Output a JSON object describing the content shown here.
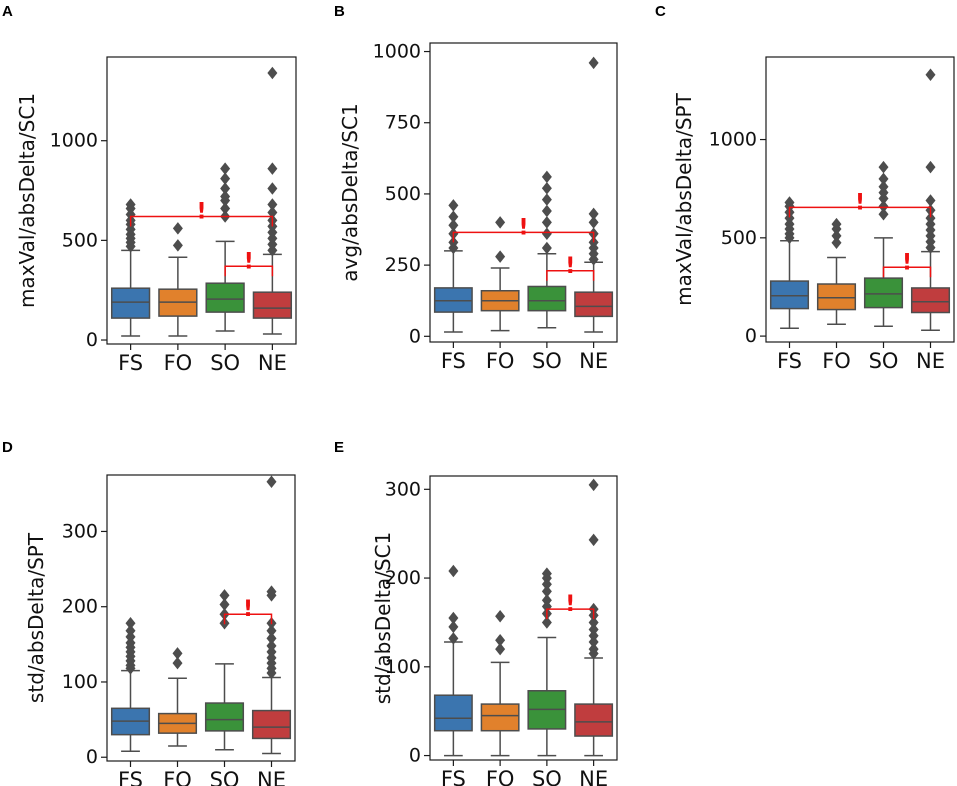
{
  "chart_data": [
    {
      "panel": "A",
      "type": "box",
      "ylabel": "maxVal/absDelta/SC1",
      "yticks": [
        0,
        500,
        1000
      ],
      "ylim": [
        -20,
        1420
      ],
      "categories": [
        "FS",
        "FO",
        "SO",
        "NE"
      ],
      "boxes": [
        {
          "cat": "FS",
          "whislo": 20,
          "q1": 110,
          "med": 190,
          "q3": 260,
          "whishi": 450,
          "fliers": [
            470,
            490,
            510,
            530,
            555,
            580,
            600,
            630,
            660,
            680
          ]
        },
        {
          "cat": "FO",
          "whislo": 20,
          "q1": 120,
          "med": 190,
          "q3": 255,
          "whishi": 415,
          "fliers": [
            475,
            560
          ]
        },
        {
          "cat": "SO",
          "whislo": 45,
          "q1": 140,
          "med": 205,
          "q3": 285,
          "whishi": 495,
          "fliers": [
            620,
            660,
            700,
            720,
            760,
            810,
            860
          ]
        },
        {
          "cat": "NE",
          "whislo": 30,
          "q1": 110,
          "med": 160,
          "q3": 240,
          "whishi": 430,
          "fliers": [
            450,
            480,
            510,
            540,
            570,
            600,
            640,
            680,
            760,
            860,
            1340
          ]
        }
      ],
      "brackets": [
        {
          "from": "FS",
          "to": "NE",
          "y": 620,
          "mark": "!"
        },
        {
          "from": "SO",
          "to": "NE",
          "y": 370,
          "mark": "!"
        }
      ]
    },
    {
      "panel": "B",
      "type": "box",
      "ylabel": "avg/absDelta/SC1",
      "yticks": [
        0,
        250,
        500,
        750,
        1000
      ],
      "ylim": [
        -20,
        1030
      ],
      "categories": [
        "FS",
        "FO",
        "SO",
        "NE"
      ],
      "boxes": [
        {
          "cat": "FS",
          "whislo": 15,
          "q1": 85,
          "med": 125,
          "q3": 170,
          "whishi": 300,
          "fliers": [
            310,
            330,
            360,
            390,
            420,
            460
          ]
        },
        {
          "cat": "FO",
          "whislo": 20,
          "q1": 90,
          "med": 125,
          "q3": 160,
          "whishi": 240,
          "fliers": [
            280,
            400
          ]
        },
        {
          "cat": "SO",
          "whislo": 30,
          "q1": 90,
          "med": 125,
          "q3": 175,
          "whishi": 290,
          "fliers": [
            310,
            360,
            400,
            440,
            480,
            520,
            560
          ]
        },
        {
          "cat": "NE",
          "whislo": 15,
          "q1": 70,
          "med": 105,
          "q3": 155,
          "whishi": 260,
          "fliers": [
            270,
            290,
            310,
            330,
            360,
            400,
            430,
            960
          ]
        }
      ],
      "brackets": [
        {
          "from": "FS",
          "to": "NE",
          "y": 365,
          "mark": "!"
        },
        {
          "from": "SO",
          "to": "NE",
          "y": 230,
          "mark": "!"
        }
      ]
    },
    {
      "panel": "C",
      "type": "box",
      "ylabel": "maxVal/absDelta/SPT",
      "yticks": [
        0,
        500,
        1000
      ],
      "ylim": [
        -30,
        1420
      ],
      "categories": [
        "FS",
        "FO",
        "SO",
        "NE"
      ],
      "boxes": [
        {
          "cat": "FS",
          "whislo": 40,
          "q1": 140,
          "med": 205,
          "q3": 280,
          "whishi": 485,
          "fliers": [
            500,
            520,
            545,
            570,
            600,
            630,
            660,
            680
          ]
        },
        {
          "cat": "FO",
          "whislo": 60,
          "q1": 135,
          "med": 195,
          "q3": 265,
          "whishi": 400,
          "fliers": [
            475,
            510,
            545,
            570
          ]
        },
        {
          "cat": "SO",
          "whislo": 50,
          "q1": 145,
          "med": 215,
          "q3": 295,
          "whishi": 500,
          "fliers": [
            620,
            660,
            700,
            730,
            760,
            800,
            860
          ]
        },
        {
          "cat": "NE",
          "whislo": 30,
          "q1": 120,
          "med": 175,
          "q3": 245,
          "whishi": 430,
          "fliers": [
            450,
            480,
            510,
            540,
            570,
            600,
            640,
            690,
            860,
            1330
          ]
        }
      ],
      "brackets": [
        {
          "from": "FS",
          "to": "NE",
          "y": 655,
          "mark": "!"
        },
        {
          "from": "SO",
          "to": "NE",
          "y": 350,
          "mark": "!"
        }
      ]
    },
    {
      "panel": "D",
      "type": "box",
      "ylabel": "std/absDelta/SPT",
      "yticks": [
        0,
        100,
        200,
        300
      ],
      "ylim": [
        -5,
        375
      ],
      "categories": [
        "FS",
        "FO",
        "SO",
        "NE"
      ],
      "boxes": [
        {
          "cat": "FS",
          "whislo": 8,
          "q1": 30,
          "med": 48,
          "q3": 65,
          "whishi": 115,
          "fliers": [
            118,
            122,
            128,
            134,
            140,
            146,
            152,
            160,
            168,
            178
          ]
        },
        {
          "cat": "FO",
          "whislo": 15,
          "q1": 32,
          "med": 45,
          "q3": 58,
          "whishi": 105,
          "fliers": [
            125,
            138
          ]
        },
        {
          "cat": "SO",
          "whislo": 10,
          "q1": 35,
          "med": 50,
          "q3": 72,
          "whishi": 124,
          "fliers": [
            178,
            190,
            203,
            215
          ]
        },
        {
          "cat": "NE",
          "whislo": 5,
          "q1": 25,
          "med": 40,
          "q3": 62,
          "whishi": 106,
          "fliers": [
            112,
            118,
            125,
            132,
            140,
            148,
            158,
            168,
            178,
            215,
            220,
            366
          ]
        }
      ],
      "brackets": [
        {
          "from": "SO",
          "to": "NE",
          "y": 190,
          "mark": "!"
        }
      ]
    },
    {
      "panel": "E",
      "type": "box",
      "ylabel": "std/absDelta/SC1",
      "yticks": [
        0,
        100,
        200,
        300
      ],
      "ylim": [
        -5,
        315
      ],
      "categories": [
        "FS",
        "FO",
        "SO",
        "NE"
      ],
      "boxes": [
        {
          "cat": "FS",
          "whislo": 0,
          "q1": 28,
          "med": 42,
          "q3": 68,
          "whishi": 128,
          "fliers": [
            132,
            145,
            155,
            208
          ]
        },
        {
          "cat": "FO",
          "whislo": 0,
          "q1": 28,
          "med": 45,
          "q3": 58,
          "whishi": 105,
          "fliers": [
            120,
            130,
            157
          ]
        },
        {
          "cat": "SO",
          "whislo": 0,
          "q1": 30,
          "med": 52,
          "q3": 73,
          "whishi": 133,
          "fliers": [
            150,
            160,
            168,
            175,
            185,
            193,
            200,
            205
          ]
        },
        {
          "cat": "NE",
          "whislo": 0,
          "q1": 22,
          "med": 38,
          "q3": 58,
          "whishi": 110,
          "fliers": [
            115,
            120,
            128,
            135,
            142,
            150,
            158,
            165,
            243,
            305
          ]
        }
      ],
      "brackets": [
        {
          "from": "SO",
          "to": "NE",
          "y": 165,
          "mark": "!"
        }
      ]
    }
  ],
  "colors": {
    "FS": "#3b75af",
    "FO": "#e1812c",
    "SO": "#3a923a",
    "NE": "#c03d3e",
    "line": "#4d4d4d",
    "sig": "#ee1111",
    "frame": "#1a1a1a"
  }
}
